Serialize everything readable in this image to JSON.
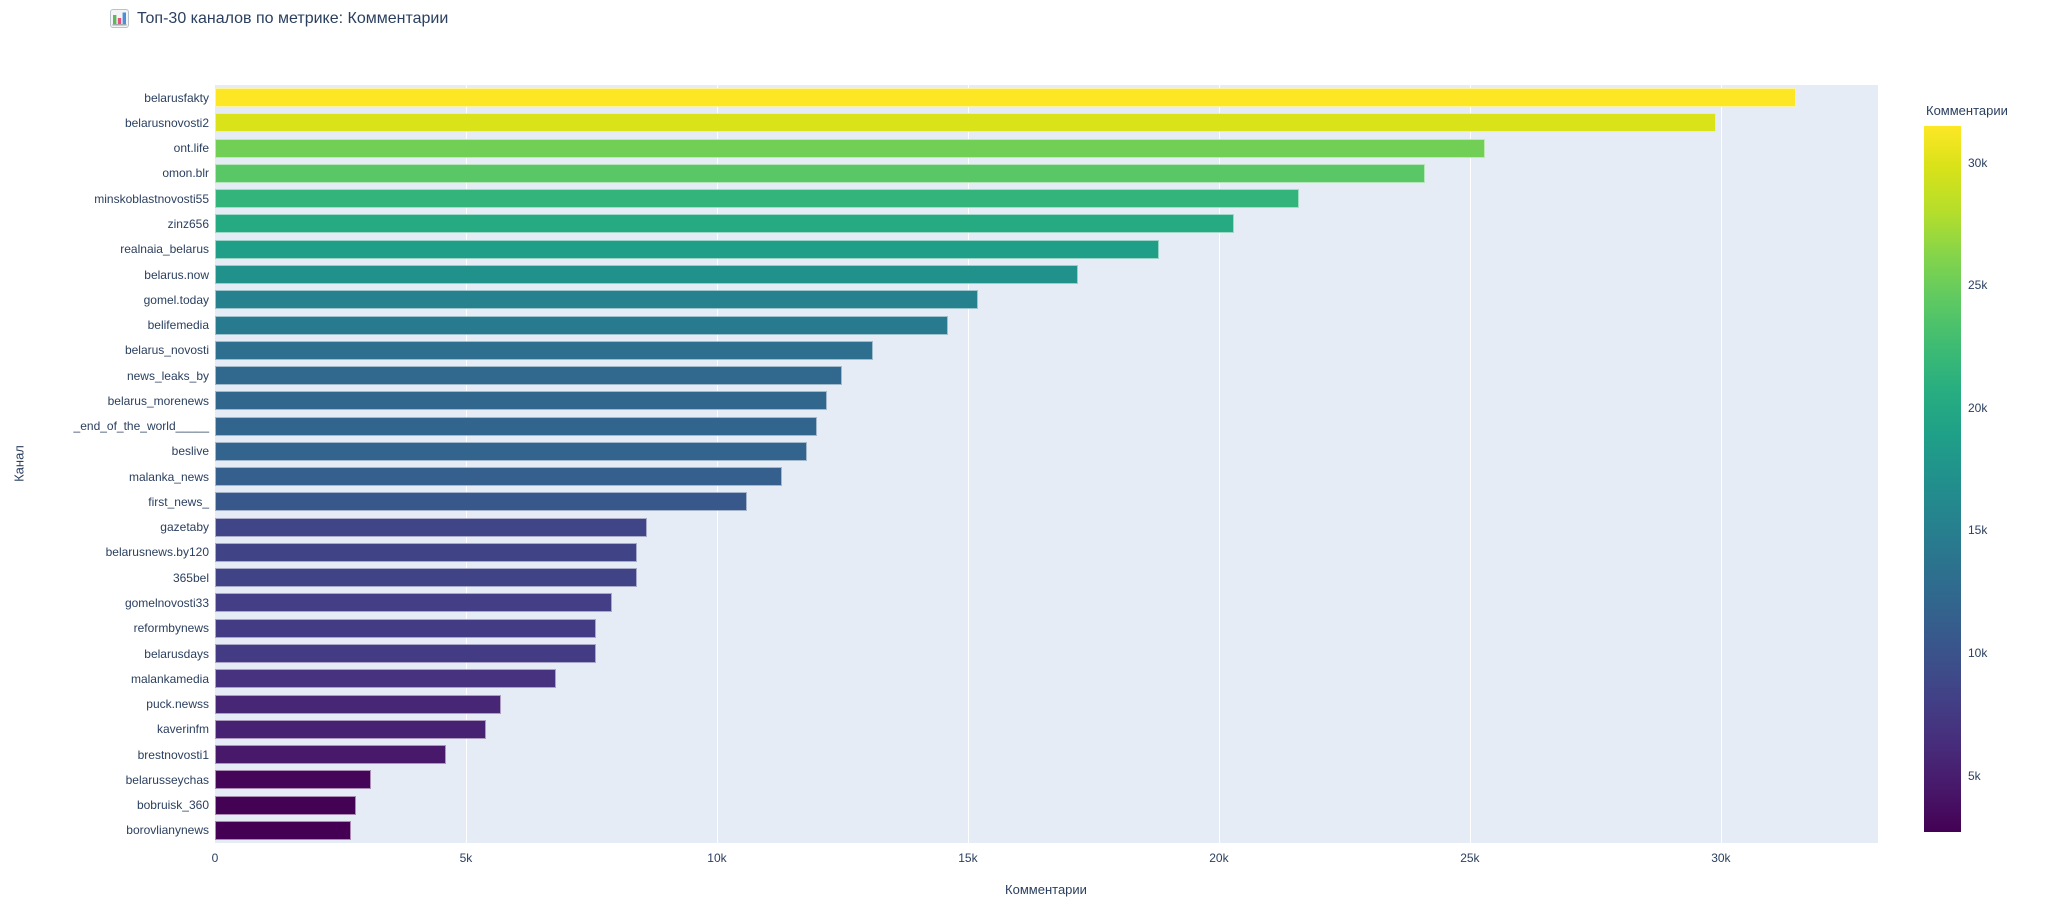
{
  "header": {
    "icon": "📊",
    "title": "Топ-30 каналов по метрике: Комментарии"
  },
  "chart_data": {
    "type": "bar",
    "orientation": "horizontal",
    "title": "Топ-30 каналов по метрике: Комментарии",
    "xlabel": "Комментарии",
    "ylabel": "Канал",
    "categories": [
      "belarusfakty",
      "belarusnovosti2",
      "ont.life",
      "omon.blr",
      "minskoblastnovosti55",
      "zinz656",
      "realnaia_belarus",
      "belarus.now",
      "gomel.today",
      "belifemedia",
      "belarus_novosti",
      "news_leaks_by",
      "belarus_morenews",
      "_end_of_the_world_____",
      "beslive",
      "malanka_news",
      "first_news_",
      "gazetaby",
      "belarusnews.by120",
      "365bel",
      "gomelnovosti33",
      "reformbynews",
      "belarusdays",
      "malankamedia",
      "puck.newss",
      "kaverinfm",
      "brestnovosti1",
      "belarusseychas",
      "bobruisk_360",
      "borovlianynews"
    ],
    "values": [
      31500,
      29900,
      25300,
      24100,
      21600,
      20300,
      18800,
      17200,
      15200,
      14600,
      13100,
      12500,
      12200,
      12000,
      11800,
      11300,
      10600,
      8600,
      8400,
      8400,
      7900,
      7600,
      7600,
      6800,
      5700,
      5400,
      4600,
      3100,
      2800,
      2700
    ],
    "xlim": [
      0,
      33130
    ],
    "xticks": [
      {
        "value": 0,
        "label": "0"
      },
      {
        "value": 5000,
        "label": "5k"
      },
      {
        "value": 10000,
        "label": "10k"
      },
      {
        "value": 15000,
        "label": "15k"
      },
      {
        "value": 20000,
        "label": "20k"
      },
      {
        "value": 25000,
        "label": "25k"
      },
      {
        "value": 30000,
        "label": "30k"
      }
    ],
    "grid": true,
    "legend_position": "right-colorbar",
    "colorbar": {
      "title": "Комментарии",
      "vmin": 2700,
      "vmax": 31500,
      "ticks": [
        {
          "value": 30000,
          "label": "30k"
        },
        {
          "value": 25000,
          "label": "25k"
        },
        {
          "value": 20000,
          "label": "20k"
        },
        {
          "value": 15000,
          "label": "15k"
        },
        {
          "value": 10000,
          "label": "10k"
        },
        {
          "value": 5000,
          "label": "5k"
        }
      ]
    },
    "colorscale": [
      [
        0,
        "#440154"
      ],
      [
        0.0627,
        "#48186a"
      ],
      [
        0.1255,
        "#472d7b"
      ],
      [
        0.1882,
        "#424086"
      ],
      [
        0.251,
        "#3b528b"
      ],
      [
        0.3137,
        "#33638d"
      ],
      [
        0.3765,
        "#2c728e"
      ],
      [
        0.4392,
        "#26828e"
      ],
      [
        0.502,
        "#21918c"
      ],
      [
        0.5647,
        "#1fa088"
      ],
      [
        0.6275,
        "#28ae80"
      ],
      [
        0.6902,
        "#3fbc73"
      ],
      [
        0.7529,
        "#5ec962"
      ],
      [
        0.8157,
        "#84d44b"
      ],
      [
        0.8784,
        "#b5de2b"
      ],
      [
        0.9412,
        "#d8e219"
      ],
      [
        1,
        "#fde725"
      ]
    ],
    "colors": {
      "plot_bg": "#e5ecf6",
      "grid": "#ffffff",
      "text": "#2a3f5f",
      "page_bg": "#ffffff"
    }
  }
}
